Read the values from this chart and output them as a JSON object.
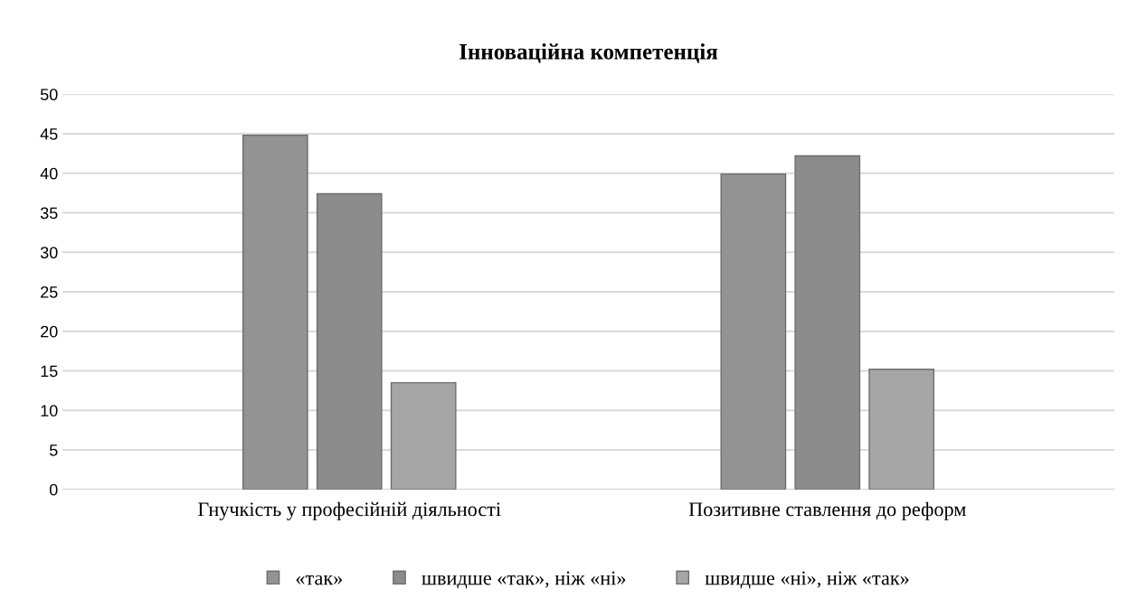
{
  "chart_data": {
    "type": "bar",
    "title": "Інноваційна компетенція",
    "categories": [
      "Гнучкість у професійній діяльності",
      "Позитивне ставлення до реформ"
    ],
    "series": [
      {
        "name": "«так»",
        "color": "#939393",
        "values": [
          44.8,
          39.9
        ]
      },
      {
        "name": "швидше «так», ніж «ні»",
        "color": "#8c8c8c",
        "values": [
          37.4,
          42.2
        ]
      },
      {
        "name": "швидше «ні», ніж «так»",
        "color": "#a6a6a6",
        "values": [
          13.5,
          15.2
        ]
      }
    ],
    "ylim": [
      0,
      50
    ],
    "yticks": [
      0,
      5,
      10,
      15,
      20,
      25,
      30,
      35,
      40,
      45,
      50
    ],
    "grid": "y",
    "legend": "bottom"
  }
}
